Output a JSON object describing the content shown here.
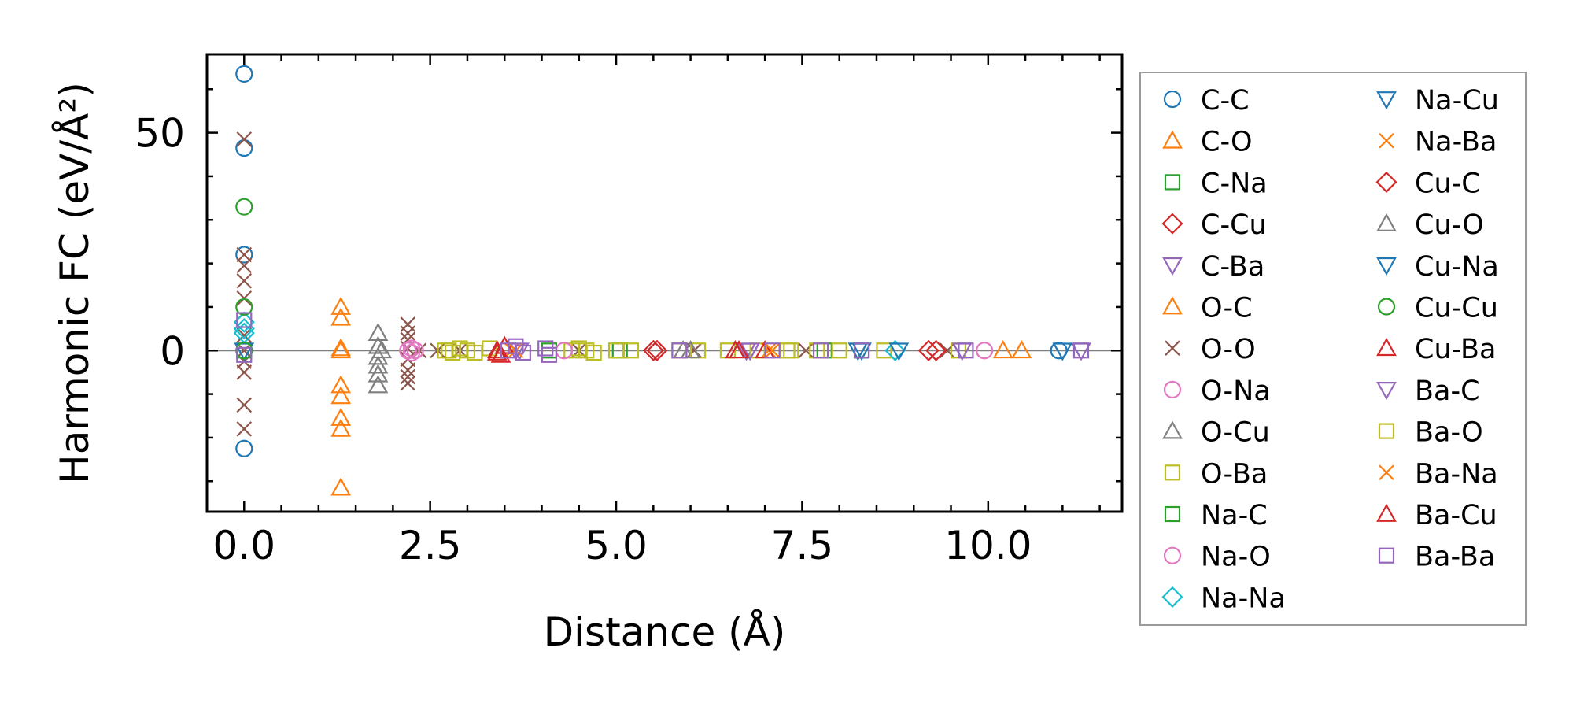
{
  "chart_data": {
    "type": "scatter",
    "title": "",
    "xlabel": "Distance (Å)",
    "ylabel": "Harmonic FC (eV/Å²)",
    "xlim": [
      -0.5,
      11.8
    ],
    "ylim": [
      -37,
      68
    ],
    "xticks": [
      0.0,
      2.5,
      5.0,
      7.5,
      10.0
    ],
    "xtick_labels": [
      "0.0",
      "2.5",
      "5.0",
      "7.5",
      "10.0"
    ],
    "yticks": [
      0,
      50
    ],
    "ytick_labels": [
      "0",
      "50"
    ],
    "reference_line_y": 0,
    "legend_position": "outside-right",
    "legend_columns": 2,
    "series": [
      {
        "name": "C-C",
        "marker": "circle",
        "color": "#1f77b4",
        "x": [
          0,
          0,
          0,
          0,
          10.95
        ],
        "y": [
          63.5,
          46.5,
          -22.5,
          22,
          0
        ]
      },
      {
        "name": "C-O",
        "marker": "triangle-up",
        "color": "#ff7f0e",
        "x": [
          1.3,
          1.3,
          1.3,
          1.3,
          1.3,
          1.3,
          1.3,
          1.3,
          10.45
        ],
        "y": [
          10,
          7.5,
          0.5,
          -8,
          -10.5,
          -15.5,
          -18,
          -31.5,
          0
        ]
      },
      {
        "name": "C-Na",
        "marker": "square",
        "color": "#2ca02c",
        "x": [
          5.05,
          7.8
        ],
        "y": [
          0,
          0
        ]
      },
      {
        "name": "C-Cu",
        "marker": "diamond",
        "color": "#d62728",
        "x": [
          5.5,
          9.2
        ],
        "y": [
          0,
          0
        ]
      },
      {
        "name": "C-Ba",
        "marker": "triangle-down",
        "color": "#9467bd",
        "x": [
          3.65,
          6.75,
          11.25
        ],
        "y": [
          0,
          0,
          0
        ]
      },
      {
        "name": "O-C",
        "marker": "triangle-up",
        "color": "#ff7f0e",
        "x": [
          1.3,
          10.2
        ],
        "y": [
          0,
          0
        ]
      },
      {
        "name": "O-O",
        "marker": "x",
        "color": "#8c564b",
        "x": [
          0,
          0,
          0,
          0,
          0,
          0,
          0,
          0,
          0,
          0,
          0,
          2.2,
          2.2,
          2.2,
          2.2,
          2.2,
          2.2,
          2.2,
          2.2,
          2.35,
          2.6,
          2.9,
          4.5,
          6.05,
          7.55,
          9.45
        ],
        "y": [
          48.5,
          22,
          19.5,
          16,
          12,
          3.5,
          -2.5,
          -5,
          -12.5,
          -18,
          0,
          6,
          4,
          2.5,
          0.5,
          -2,
          -4.5,
          -6,
          -7.5,
          0,
          0,
          0,
          0,
          0,
          0,
          0
        ]
      },
      {
        "name": "O-Na",
        "marker": "circle",
        "color": "#e377c2",
        "x": [
          2.25,
          2.25,
          2.3
        ],
        "y": [
          0.5,
          -0.5,
          0
        ]
      },
      {
        "name": "O-Cu",
        "marker": "triangle-up",
        "color": "#7f7f7f",
        "x": [
          1.8,
          1.8,
          1.8,
          1.8,
          1.8,
          1.8,
          5.9
        ],
        "y": [
          4,
          1,
          -1.5,
          -3.5,
          -5.5,
          -8,
          0
        ]
      },
      {
        "name": "O-Ba",
        "marker": "square",
        "color": "#bcbd22",
        "x": [
          2.7,
          2.8,
          2.9,
          3.0,
          3.1,
          3.3,
          4.4,
          4.5,
          4.6,
          4.7,
          5.0,
          5.2,
          6.1,
          6.5,
          6.9,
          7.3,
          7.7,
          8.0,
          8.6,
          9.6
        ],
        "y": [
          0,
          -0.5,
          0.5,
          0,
          -0.5,
          0.5,
          0,
          0.5,
          0,
          -0.5,
          0,
          0,
          0,
          0,
          0,
          0,
          0,
          0,
          0,
          0
        ]
      },
      {
        "name": "Na-C",
        "marker": "square",
        "color": "#2ca02c",
        "x": [
          0,
          4.1,
          8.3
        ],
        "y": [
          0,
          0,
          0
        ]
      },
      {
        "name": "Na-O",
        "marker": "circle",
        "color": "#e377c2",
        "x": [
          2.2,
          4.3,
          9.95
        ],
        "y": [
          0,
          0,
          0
        ]
      },
      {
        "name": "Na-Na",
        "marker": "diamond",
        "color": "#17becf",
        "x": [
          0,
          0,
          0,
          8.75
        ],
        "y": [
          6.5,
          5,
          4,
          0
        ]
      },
      {
        "name": "Na-Cu",
        "marker": "triangle-down",
        "color": "#1f77b4",
        "x": [
          0,
          8.25,
          8.8
        ],
        "y": [
          0,
          0,
          0
        ]
      },
      {
        "name": "Na-Ba",
        "marker": "x",
        "color": "#ff7f0e",
        "x": [
          3.6,
          7.05
        ],
        "y": [
          0,
          0
        ]
      },
      {
        "name": "Cu-C",
        "marker": "diamond",
        "color": "#d62728",
        "x": [
          5.55,
          9.3
        ],
        "y": [
          0,
          0
        ]
      },
      {
        "name": "Cu-O",
        "marker": "triangle-up",
        "color": "#7f7f7f",
        "x": [
          1.85,
          6.0
        ],
        "y": [
          0,
          0
        ]
      },
      {
        "name": "Cu-Na",
        "marker": "triangle-down",
        "color": "#1f77b4",
        "x": [
          8.3,
          11.0
        ],
        "y": [
          0,
          0
        ]
      },
      {
        "name": "Cu-Cu",
        "marker": "circle",
        "color": "#2ca02c",
        "x": [
          0,
          0,
          0
        ],
        "y": [
          33,
          10,
          0
        ]
      },
      {
        "name": "Cu-Ba",
        "marker": "triangle-up",
        "color": "#d62728",
        "x": [
          3.4,
          3.45,
          3.5,
          6.6,
          7.0
        ],
        "y": [
          0,
          -1,
          1,
          0,
          0
        ]
      },
      {
        "name": "Ba-C",
        "marker": "triangle-down",
        "color": "#9467bd",
        "x": [
          3.7,
          6.8,
          9.65
        ],
        "y": [
          0,
          0,
          0
        ]
      },
      {
        "name": "Ba-O",
        "marker": "square",
        "color": "#bcbd22",
        "x": [
          2.75,
          5.85,
          7.35
        ],
        "y": [
          0,
          0,
          0
        ]
      },
      {
        "name": "Ba-Na",
        "marker": "x",
        "color": "#ff7f0e",
        "x": [
          3.65,
          7.1
        ],
        "y": [
          0,
          0
        ]
      },
      {
        "name": "Ba-Cu",
        "marker": "triangle-up",
        "color": "#d62728",
        "x": [
          3.4,
          6.65
        ],
        "y": [
          -0.5,
          0
        ]
      },
      {
        "name": "Ba-Ba",
        "marker": "square",
        "color": "#9467bd",
        "x": [
          0,
          0,
          3.55,
          3.65,
          3.75,
          4.05,
          4.1,
          5.85,
          7.1,
          7.75,
          8.3,
          9.7,
          11.25
        ],
        "y": [
          7,
          -1,
          0,
          1,
          -0.5,
          0.5,
          -1,
          0,
          0,
          0,
          0,
          0,
          0
        ]
      }
    ]
  }
}
